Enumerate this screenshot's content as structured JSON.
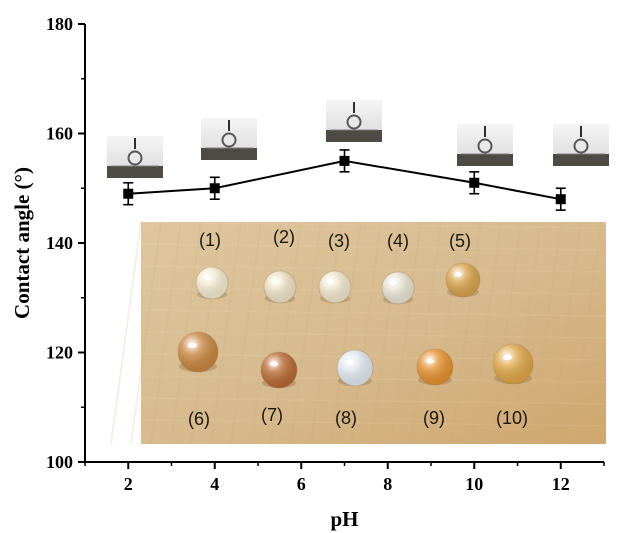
{
  "chart_data": {
    "type": "scatter",
    "title": "",
    "xlabel": "pH",
    "ylabel": "Contact angle (°)",
    "xlim": [
      1,
      13
    ],
    "ylim": [
      100,
      180
    ],
    "x_ticks": [
      "2",
      "4",
      "6",
      "8",
      "10",
      "12"
    ],
    "y_ticks": [
      "100",
      "120",
      "140",
      "160",
      "180"
    ],
    "series": [
      {
        "x": [
          2,
          4,
          7,
          10,
          12
        ],
        "y": [
          149,
          150,
          155,
          151,
          148
        ],
        "error": [
          2,
          2,
          2,
          2,
          2
        ],
        "color": "#000000",
        "marker": "square",
        "line": true
      }
    ],
    "drop_photo_labels": [
      "(1)",
      "(2)",
      "(3)",
      "(4)",
      "(5)",
      "(6)",
      "(7)",
      "(8)",
      "(9)",
      "(10)"
    ],
    "droplet_colors": [
      "#f4ead0",
      "#eee2c5",
      "#efe5cb",
      "#e8e3d2",
      "#d8a24a",
      "#c8843d",
      "#b86730",
      "#dfe7ef",
      "#e58f2c",
      "#dea446"
    ]
  }
}
